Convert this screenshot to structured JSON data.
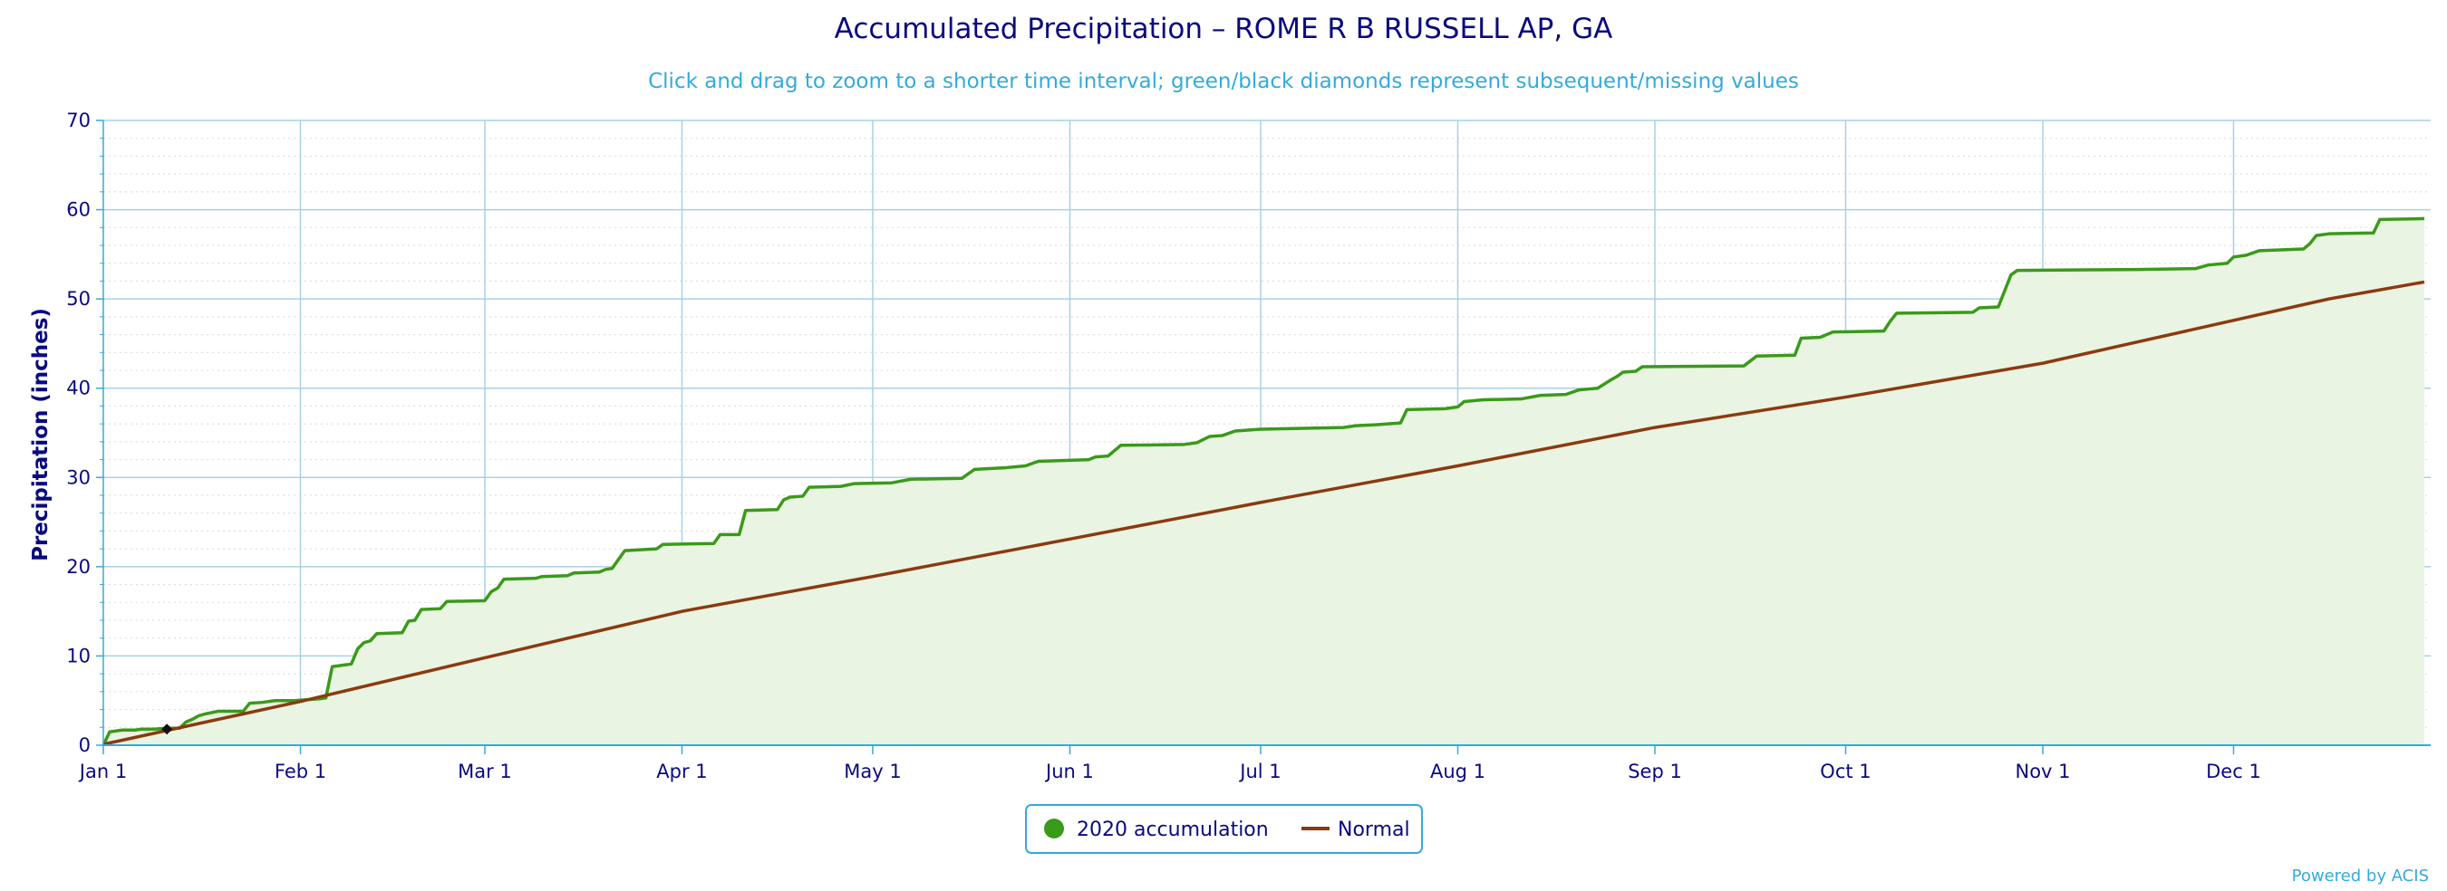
{
  "chart_data": {
    "type": "line",
    "title": "Accumulated Precipitation – ROME R B RUSSELL AP, GA",
    "subtitle": "Click and drag to zoom to a shorter time interval; green/black diamonds represent subsequent/missing values",
    "ylabel": "Precipitation (inches)",
    "xlabel": "",
    "ylim": [
      0,
      70
    ],
    "yticks": [
      0,
      10,
      20,
      30,
      40,
      50,
      60,
      70
    ],
    "x_ticks": [
      {
        "label": "Jan 1",
        "day": 0
      },
      {
        "label": "Feb 1",
        "day": 31
      },
      {
        "label": "Mar 1",
        "day": 60
      },
      {
        "label": "Apr 1",
        "day": 91
      },
      {
        "label": "May 1",
        "day": 121
      },
      {
        "label": "Jun 1",
        "day": 152
      },
      {
        "label": "Jul 1",
        "day": 182
      },
      {
        "label": "Aug 1",
        "day": 213
      },
      {
        "label": "Sep 1",
        "day": 244
      },
      {
        "label": "Oct 1",
        "day": 274
      },
      {
        "label": "Nov 1",
        "day": 305
      },
      {
        "label": "Dec 1",
        "day": 335
      }
    ],
    "x_days_in_year": 366,
    "grid": true,
    "legend_position": "bottom-center",
    "series": [
      {
        "name": "2020 accumulation",
        "color": "#3a9a1a",
        "fill": "#eaf4e2",
        "step": true,
        "points": [
          [
            0,
            0.0
          ],
          [
            1,
            1.5
          ],
          [
            3,
            1.7
          ],
          [
            5,
            1.7
          ],
          [
            6,
            1.8
          ],
          [
            8,
            1.8
          ],
          [
            10,
            1.9
          ],
          [
            12,
            1.9
          ],
          [
            13,
            2.6
          ],
          [
            14,
            2.9
          ],
          [
            15,
            3.3
          ],
          [
            16,
            3.5
          ],
          [
            18,
            3.8
          ],
          [
            22,
            3.8
          ],
          [
            23,
            4.7
          ],
          [
            25,
            4.8
          ],
          [
            27,
            5.0
          ],
          [
            30,
            5.0
          ],
          [
            32,
            5.1
          ],
          [
            34,
            5.2
          ],
          [
            35,
            5.3
          ],
          [
            36,
            8.8
          ],
          [
            38,
            9.0
          ],
          [
            39,
            9.1
          ],
          [
            40,
            10.8
          ],
          [
            41,
            11.5
          ],
          [
            42,
            11.7
          ],
          [
            43,
            12.5
          ],
          [
            47,
            12.6
          ],
          [
            48,
            13.9
          ],
          [
            49,
            14.0
          ],
          [
            50,
            15.2
          ],
          [
            53,
            15.3
          ],
          [
            54,
            16.1
          ],
          [
            60,
            16.2
          ],
          [
            61,
            17.2
          ],
          [
            62,
            17.6
          ],
          [
            63,
            18.6
          ],
          [
            68,
            18.7
          ],
          [
            69,
            18.9
          ],
          [
            73,
            19.0
          ],
          [
            74,
            19.3
          ],
          [
            78,
            19.4
          ],
          [
            79,
            19.7
          ],
          [
            80,
            19.8
          ],
          [
            82,
            21.8
          ],
          [
            87,
            22.0
          ],
          [
            88,
            22.5
          ],
          [
            96,
            22.6
          ],
          [
            97,
            23.6
          ],
          [
            100,
            23.6
          ],
          [
            101,
            26.3
          ],
          [
            106,
            26.4
          ],
          [
            107,
            27.5
          ],
          [
            108,
            27.8
          ],
          [
            110,
            27.9
          ],
          [
            111,
            28.9
          ],
          [
            116,
            29.0
          ],
          [
            118,
            29.3
          ],
          [
            124,
            29.4
          ],
          [
            127,
            29.8
          ],
          [
            135,
            29.9
          ],
          [
            137,
            30.9
          ],
          [
            142,
            31.1
          ],
          [
            145,
            31.3
          ],
          [
            147,
            31.8
          ],
          [
            155,
            32.0
          ],
          [
            156,
            32.3
          ],
          [
            158,
            32.4
          ],
          [
            160,
            33.6
          ],
          [
            170,
            33.7
          ],
          [
            172,
            33.9
          ],
          [
            174,
            34.6
          ],
          [
            176,
            34.7
          ],
          [
            178,
            35.2
          ],
          [
            182,
            35.4
          ],
          [
            188,
            35.5
          ],
          [
            195,
            35.6
          ],
          [
            197,
            35.8
          ],
          [
            200,
            35.9
          ],
          [
            204,
            36.1
          ],
          [
            205,
            37.6
          ],
          [
            211,
            37.7
          ],
          [
            213,
            37.9
          ],
          [
            214,
            38.5
          ],
          [
            217,
            38.7
          ],
          [
            223,
            38.8
          ],
          [
            226,
            39.2
          ],
          [
            230,
            39.3
          ],
          [
            232,
            39.8
          ],
          [
            235,
            40.0
          ],
          [
            237,
            40.9
          ],
          [
            238,
            41.3
          ],
          [
            239,
            41.8
          ],
          [
            241,
            41.9
          ],
          [
            242,
            42.4
          ],
          [
            258,
            42.5
          ],
          [
            260,
            43.6
          ],
          [
            266,
            43.7
          ],
          [
            267,
            45.6
          ],
          [
            270,
            45.7
          ],
          [
            272,
            46.3
          ],
          [
            280,
            46.4
          ],
          [
            281,
            47.5
          ],
          [
            282,
            48.4
          ],
          [
            294,
            48.5
          ],
          [
            295,
            49.0
          ],
          [
            298,
            49.1
          ],
          [
            300,
            52.7
          ],
          [
            301,
            53.2
          ],
          [
            320,
            53.3
          ],
          [
            329,
            53.4
          ],
          [
            331,
            53.8
          ],
          [
            334,
            54.0
          ],
          [
            335,
            54.7
          ],
          [
            337,
            54.9
          ],
          [
            339,
            55.4
          ],
          [
            346,
            55.6
          ],
          [
            347,
            56.2
          ],
          [
            348,
            57.1
          ],
          [
            350,
            57.3
          ],
          [
            357,
            57.4
          ],
          [
            358,
            58.9
          ],
          [
            365,
            59.0
          ]
        ]
      },
      {
        "name": "Normal",
        "color": "#8b3a0f",
        "step": false,
        "points": [
          [
            0,
            0.1
          ],
          [
            31,
            4.9
          ],
          [
            60,
            9.8
          ],
          [
            91,
            15.0
          ],
          [
            121,
            18.9
          ],
          [
            152,
            23.1
          ],
          [
            182,
            27.2
          ],
          [
            213,
            31.3
          ],
          [
            244,
            35.6
          ],
          [
            274,
            39.0
          ],
          [
            305,
            42.8
          ],
          [
            335,
            47.6
          ],
          [
            350,
            50.0
          ],
          [
            365,
            51.9
          ]
        ]
      }
    ],
    "markers": [
      {
        "kind": "missing",
        "color": "#111111",
        "day": 10,
        "value": 1.8
      }
    ]
  },
  "credit": "Powered by ACIS"
}
